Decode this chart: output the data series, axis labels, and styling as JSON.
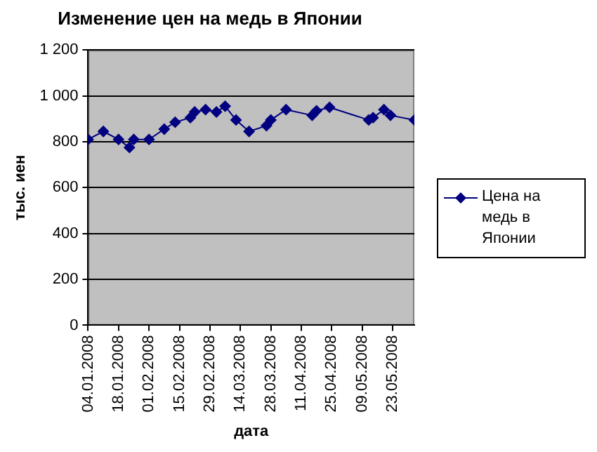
{
  "chart_data": {
    "type": "line",
    "title": "Изменение цен на медь в Японии",
    "xlabel": "дата",
    "ylabel": "тыс. иен",
    "x": [
      "2008-01-04",
      "2008-01-11",
      "2008-01-18",
      "2008-01-23",
      "2008-01-25",
      "2008-02-01",
      "2008-02-08",
      "2008-02-13",
      "2008-02-20",
      "2008-02-22",
      "2008-02-27",
      "2008-03-03",
      "2008-03-07",
      "2008-03-12",
      "2008-03-18",
      "2008-03-26",
      "2008-03-28",
      "2008-04-04",
      "2008-04-16",
      "2008-04-18",
      "2008-04-24",
      "2008-05-12",
      "2008-05-14",
      "2008-05-19",
      "2008-05-22",
      "2008-06-02"
    ],
    "series": [
      {
        "name": "Цена на медь в Японии",
        "color": "#000080",
        "values": [
          810,
          845,
          810,
          775,
          810,
          810,
          855,
          885,
          905,
          930,
          940,
          930,
          955,
          895,
          845,
          870,
          895,
          940,
          915,
          935,
          950,
          895,
          905,
          940,
          915,
          895
        ]
      }
    ],
    "xlim": [
      "2008-01-04",
      "2008-06-02"
    ],
    "xticks": [
      {
        "value": "2008-01-04",
        "label": "04.01.2008"
      },
      {
        "value": "2008-01-18",
        "label": "18.01.2008"
      },
      {
        "value": "2008-02-01",
        "label": "01.02.2008"
      },
      {
        "value": "2008-02-15",
        "label": "15.02.2008"
      },
      {
        "value": "2008-02-29",
        "label": "29.02.2008"
      },
      {
        "value": "2008-03-14",
        "label": "14.03.2008"
      },
      {
        "value": "2008-03-28",
        "label": "28.03.2008"
      },
      {
        "value": "2008-04-11",
        "label": "11.04.2008"
      },
      {
        "value": "2008-04-25",
        "label": "25.04.2008"
      },
      {
        "value": "2008-05-09",
        "label": "09.05.2008"
      },
      {
        "value": "2008-05-23",
        "label": "23.05.2008"
      }
    ],
    "ylim": [
      0,
      1200
    ],
    "yticks": [
      0,
      200,
      400,
      600,
      800,
      {
        "value": 1000,
        "label": "1 000"
      },
      {
        "value": 1200,
        "label": "1 200"
      }
    ],
    "grid": "y",
    "legend": "right",
    "marker": "diamond",
    "line_style": "solid"
  }
}
